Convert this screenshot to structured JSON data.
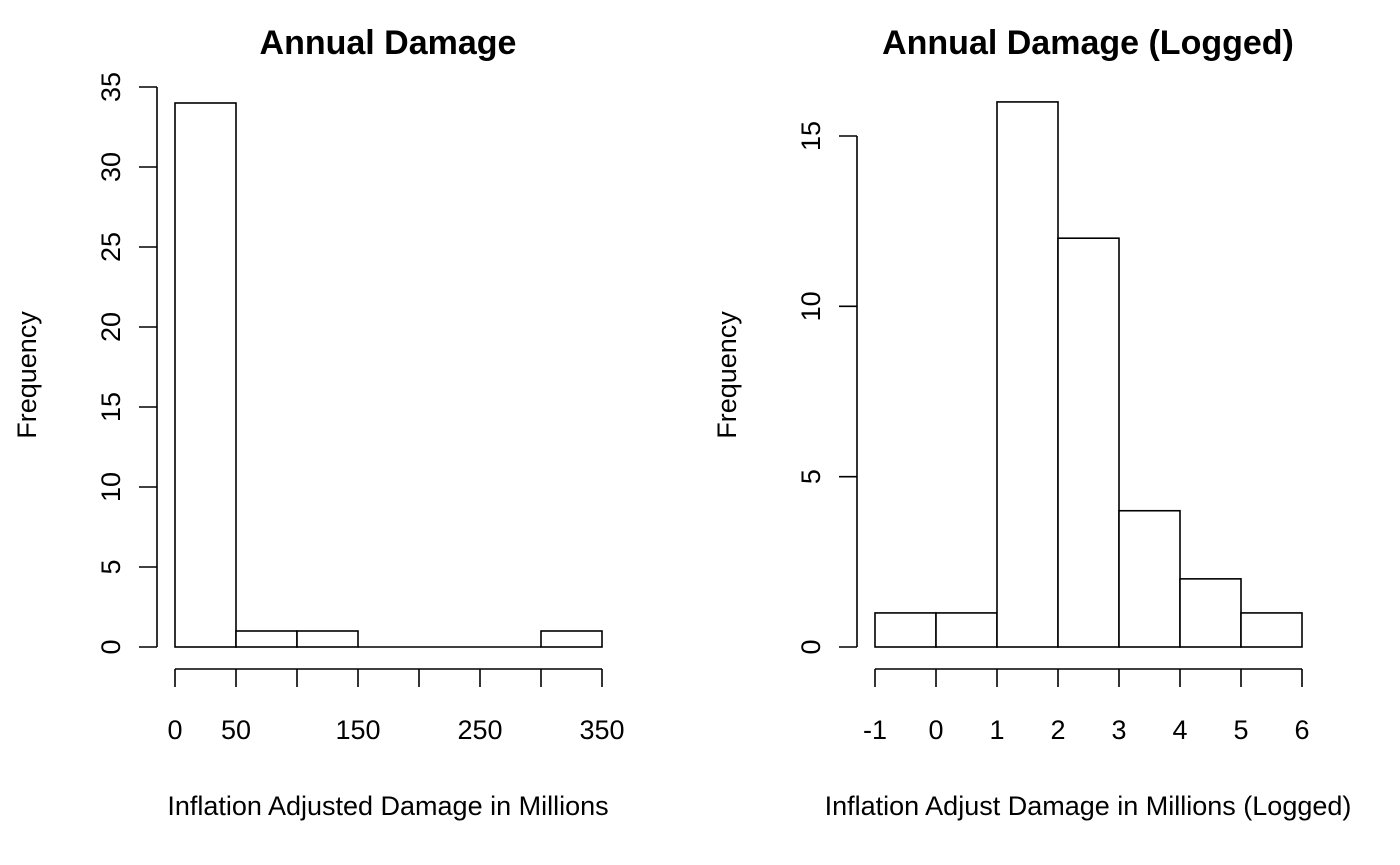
{
  "chart_data": [
    {
      "type": "bar",
      "title": "Annual Damage",
      "xlabel": "Inflation Adjusted Damage in Millions",
      "ylabel": "Frequency",
      "bins": [
        [
          0,
          50
        ],
        [
          50,
          100
        ],
        [
          100,
          150
        ],
        [
          150,
          200
        ],
        [
          200,
          250
        ],
        [
          250,
          300
        ],
        [
          300,
          350
        ]
      ],
      "values": [
        34,
        1,
        1,
        0,
        0,
        0,
        1
      ],
      "xlim": [
        0,
        350
      ],
      "ylim": [
        0,
        35
      ],
      "xticks": [
        0,
        50,
        100,
        150,
        200,
        250,
        300,
        350
      ],
      "xtick_labels": [
        "0",
        "50",
        "",
        "150",
        "",
        "250",
        "",
        "350"
      ],
      "yticks": [
        0,
        5,
        10,
        15,
        20,
        25,
        30,
        35
      ],
      "ytick_labels": [
        "0",
        "5",
        "10",
        "15",
        "20",
        "25",
        "30",
        "35"
      ],
      "grid": false
    },
    {
      "type": "bar",
      "title": "Annual Damage (Logged)",
      "xlabel": "Inflation Adjust Damage in Millions (Logged)",
      "ylabel": "Frequency",
      "bins": [
        [
          -1,
          0
        ],
        [
          0,
          1
        ],
        [
          1,
          2
        ],
        [
          2,
          3
        ],
        [
          3,
          4
        ],
        [
          4,
          5
        ],
        [
          5,
          6
        ]
      ],
      "values": [
        1,
        1,
        16,
        12,
        4,
        2,
        1
      ],
      "xlim": [
        -1,
        6
      ],
      "ylim": [
        0,
        15
      ],
      "xticks": [
        -1,
        0,
        1,
        2,
        3,
        4,
        5,
        6
      ],
      "xtick_labels": [
        "-1",
        "0",
        "1",
        "2",
        "3",
        "4",
        "5",
        "6"
      ],
      "yticks": [
        0,
        5,
        10,
        15
      ],
      "ytick_labels": [
        "0",
        "5",
        "10",
        "15"
      ],
      "grid": false
    }
  ]
}
